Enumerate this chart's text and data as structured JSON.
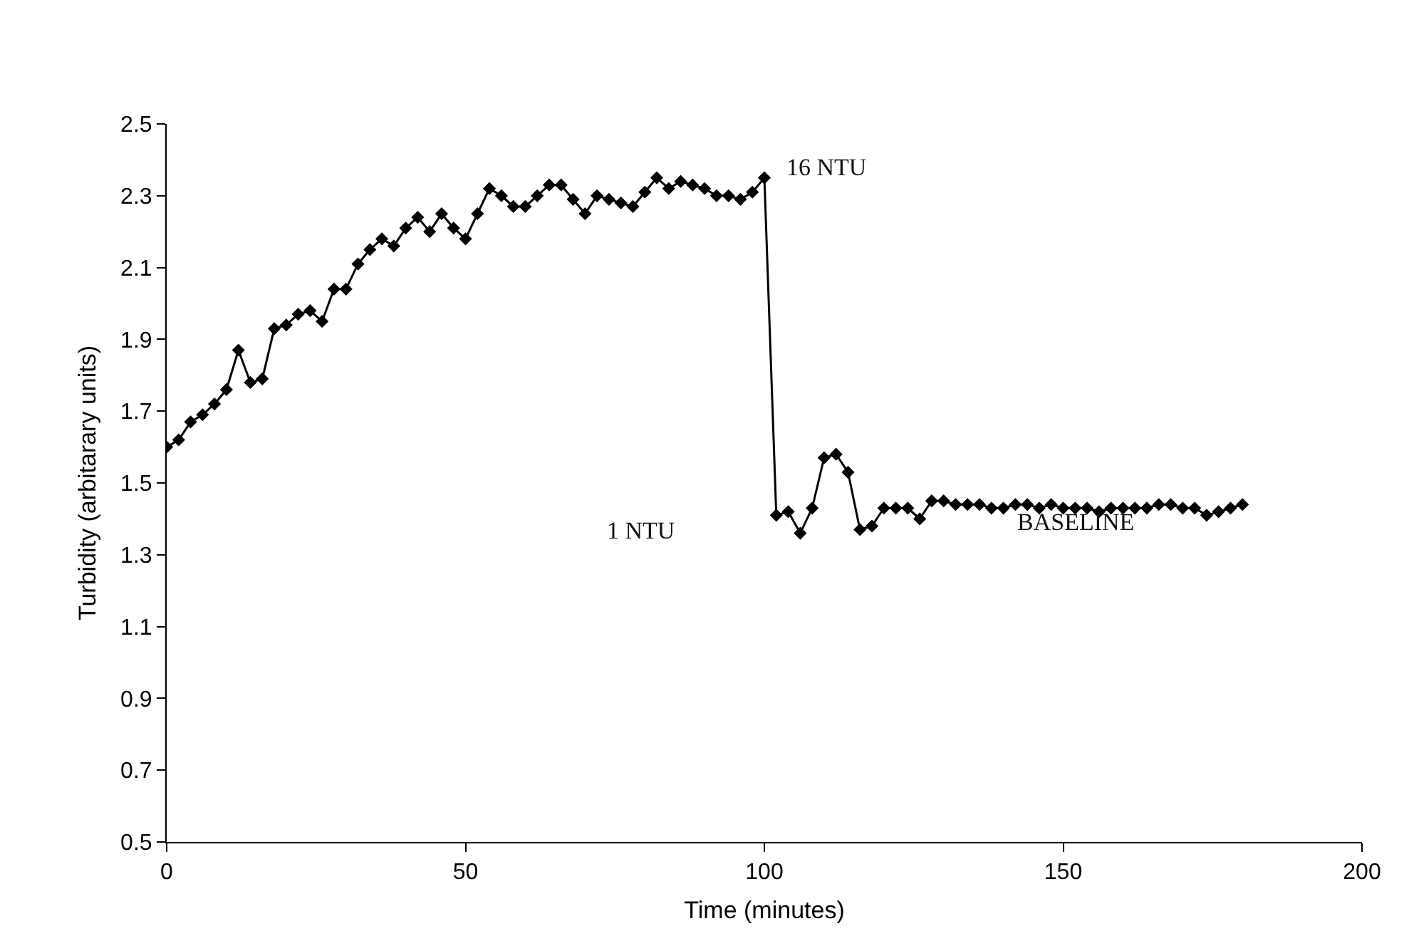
{
  "chart_data": {
    "type": "line",
    "xlabel": "Time (minutes)",
    "ylabel": "Turbidity (arbitarary units)",
    "x": [
      0,
      2,
      4,
      6,
      8,
      10,
      12,
      14,
      16,
      18,
      20,
      22,
      24,
      26,
      28,
      30,
      32,
      34,
      36,
      38,
      40,
      42,
      44,
      46,
      48,
      50,
      52,
      54,
      56,
      58,
      60,
      62,
      64,
      66,
      68,
      70,
      72,
      74,
      76,
      78,
      80,
      82,
      84,
      86,
      88,
      90,
      92,
      94,
      96,
      98,
      100,
      102,
      104,
      106,
      108,
      110,
      112,
      114,
      116,
      118,
      120,
      122,
      124,
      126,
      128,
      130,
      132,
      134,
      136,
      138,
      140,
      142,
      144,
      146,
      148,
      150,
      152,
      154,
      156,
      158,
      160,
      162,
      164,
      166,
      168,
      170,
      172,
      174,
      176,
      178,
      180
    ],
    "series": [
      {
        "color": "#000000",
        "values": [
          1.6,
          1.62,
          1.67,
          1.69,
          1.72,
          1.76,
          1.87,
          1.78,
          1.79,
          1.93,
          1.94,
          1.97,
          1.98,
          1.95,
          2.04,
          2.04,
          2.11,
          2.15,
          2.18,
          2.16,
          2.21,
          2.24,
          2.2,
          2.25,
          2.21,
          2.18,
          2.25,
          2.32,
          2.3,
          2.27,
          2.27,
          2.3,
          2.33,
          2.33,
          2.29,
          2.25,
          2.3,
          2.29,
          2.28,
          2.27,
          2.31,
          2.35,
          2.32,
          2.34,
          2.33,
          2.32,
          2.3,
          2.3,
          2.29,
          2.31,
          2.35,
          1.41,
          1.42,
          1.36,
          1.43,
          1.57,
          1.58,
          1.53,
          1.37,
          1.38,
          1.43,
          1.43,
          1.43,
          1.4,
          1.45,
          1.45,
          1.44,
          1.44,
          1.44,
          1.43,
          1.43,
          1.44,
          1.44,
          1.43,
          1.44,
          1.43,
          1.43,
          1.43,
          1.42,
          1.43,
          1.43,
          1.43,
          1.43,
          1.44,
          1.44,
          1.43,
          1.43,
          1.41,
          1.42,
          1.43,
          1.44
        ]
      }
    ],
    "xlim": [
      0,
      200
    ],
    "xticks": [
      0,
      50,
      100,
      150,
      200
    ],
    "ylim": [
      0.5,
      2.5
    ],
    "yticks": [
      0.5,
      0.7,
      0.9,
      1.1,
      1.3,
      1.5,
      1.7,
      1.9,
      2.1,
      2.3,
      2.5
    ],
    "annotations": [
      "16 NTU",
      "1 NTU",
      "BASELINE"
    ],
    "marker": "diamond",
    "line_style": "solid"
  }
}
